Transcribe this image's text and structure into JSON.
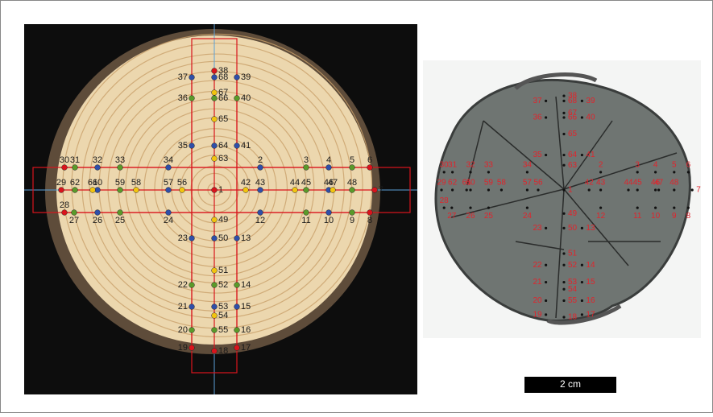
{
  "points": [
    {
      "label": "1",
      "color": "#d9141c"
    },
    {
      "label": "2",
      "color": "#2f4fa8"
    },
    {
      "label": "3",
      "color": "#5a9a2a"
    },
    {
      "label": "4",
      "color": "#2f4fa8"
    },
    {
      "label": "5",
      "color": "#5a9a2a"
    },
    {
      "label": "6",
      "color": "#d9141c"
    },
    {
      "label": "7",
      "color": "#d9141c"
    },
    {
      "label": "8",
      "color": "#d9141c"
    },
    {
      "label": "9",
      "color": "#5a9a2a"
    },
    {
      "label": "10",
      "color": "#2f4fa8"
    },
    {
      "label": "11",
      "color": "#5a9a2a"
    },
    {
      "label": "12",
      "color": "#2f4fa8"
    },
    {
      "label": "13",
      "color": "#2f4fa8"
    },
    {
      "label": "14",
      "color": "#5a9a2a"
    },
    {
      "label": "15",
      "color": "#2f4fa8"
    },
    {
      "label": "16",
      "color": "#5a9a2a"
    },
    {
      "label": "17",
      "color": "#d9141c"
    },
    {
      "label": "18",
      "color": "#d9141c"
    },
    {
      "label": "19",
      "color": "#d9141c"
    },
    {
      "label": "20",
      "color": "#5a9a2a"
    },
    {
      "label": "21",
      "color": "#2f4fa8"
    },
    {
      "label": "22",
      "color": "#5a9a2a"
    },
    {
      "label": "23",
      "color": "#2f4fa8"
    },
    {
      "label": "24",
      "color": "#2f4fa8"
    },
    {
      "label": "25",
      "color": "#5a9a2a"
    },
    {
      "label": "26",
      "color": "#2f4fa8"
    },
    {
      "label": "27",
      "color": "#5a9a2a"
    },
    {
      "label": "28",
      "color": "#d9141c"
    },
    {
      "label": "29",
      "color": "#d9141c"
    },
    {
      "label": "30",
      "color": "#d9141c"
    },
    {
      "label": "31",
      "color": "#5a9a2a"
    },
    {
      "label": "32",
      "color": "#2f4fa8"
    },
    {
      "label": "33",
      "color": "#5a9a2a"
    },
    {
      "label": "34",
      "color": "#2f4fa8"
    },
    {
      "label": "35",
      "color": "#2f4fa8"
    },
    {
      "label": "36",
      "color": "#5a9a2a"
    },
    {
      "label": "37",
      "color": "#2f4fa8"
    },
    {
      "label": "38",
      "color": "#d9141c"
    },
    {
      "label": "39",
      "color": "#2f4fa8"
    },
    {
      "label": "40",
      "color": "#5a9a2a"
    },
    {
      "label": "41",
      "color": "#2f4fa8"
    },
    {
      "label": "42",
      "color": "#f2c40f"
    },
    {
      "label": "43",
      "color": "#2f4fa8"
    },
    {
      "label": "44",
      "color": "#f2c40f"
    },
    {
      "label": "45",
      "color": "#5a9a2a"
    },
    {
      "label": "46",
      "color": "#2f4fa8"
    },
    {
      "label": "47",
      "color": "#f2c40f"
    },
    {
      "label": "48",
      "color": "#5a9a2a"
    },
    {
      "label": "49",
      "color": "#f2c40f"
    },
    {
      "label": "50",
      "color": "#2f4fa8"
    },
    {
      "label": "51",
      "color": "#f2c40f"
    },
    {
      "label": "52",
      "color": "#5a9a2a"
    },
    {
      "label": "53",
      "color": "#2f4fa8"
    },
    {
      "label": "54",
      "color": "#f2c40f"
    },
    {
      "label": "55",
      "color": "#5a9a2a"
    },
    {
      "label": "56",
      "color": "#f2c40f"
    },
    {
      "label": "57",
      "color": "#2f4fa8"
    },
    {
      "label": "58",
      "color": "#f2c40f"
    },
    {
      "label": "59",
      "color": "#5a9a2a"
    },
    {
      "label": "60",
      "color": "#2f4fa8"
    },
    {
      "label": "61",
      "color": "#f2c40f"
    },
    {
      "label": "62",
      "color": "#5a9a2a"
    },
    {
      "label": "63",
      "color": "#f2c40f"
    },
    {
      "label": "64",
      "color": "#2f4fa8"
    },
    {
      "label": "65",
      "color": "#f2c40f"
    },
    {
      "label": "66",
      "color": "#5a9a2a"
    },
    {
      "label": "67",
      "color": "#f2c40f"
    },
    {
      "label": "68",
      "color": "#2f4fa8"
    }
  ],
  "scale_bar": {
    "label": "2 cm"
  }
}
